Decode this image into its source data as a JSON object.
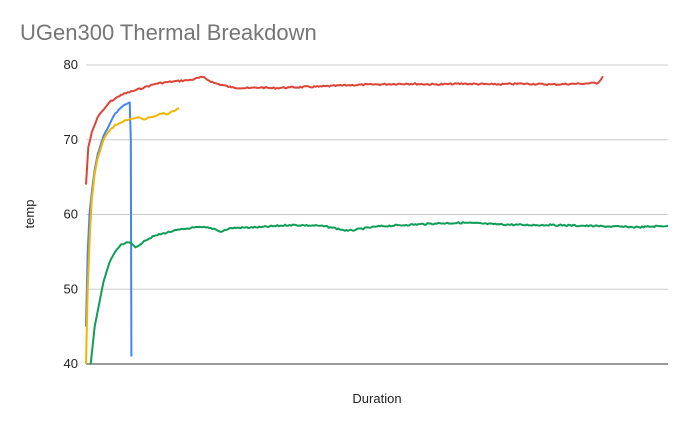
{
  "chart_data": {
    "type": "line",
    "title": "UGen300 Thermal Breakdown",
    "xlabel": "Duration",
    "ylabel": "temp",
    "ylim": [
      40,
      80
    ],
    "yticks": [
      40,
      50,
      60,
      70,
      80
    ],
    "xlim": [
      0,
      100
    ],
    "grid": true,
    "legend": "none",
    "series": [
      {
        "color": "#db4437",
        "x": [
          0,
          0.4,
          1,
          2,
          3,
          4,
          6,
          8,
          10,
          12,
          15,
          18,
          20,
          22,
          25,
          28,
          30,
          32,
          35,
          40,
          45,
          50,
          55,
          60,
          65,
          70,
          75,
          80,
          85,
          88,
          88.8
        ],
        "y": [
          64,
          69,
          71,
          73,
          74,
          75,
          76,
          76.5,
          77,
          77.5,
          77.8,
          78,
          78.4,
          77.6,
          77,
          76.9,
          77,
          76.9,
          77,
          77.1,
          77.3,
          77.4,
          77.5,
          77.4,
          77.5,
          77.4,
          77.5,
          77.4,
          77.5,
          77.6,
          78.5
        ]
      },
      {
        "color": "#4285f4",
        "x": [
          0,
          0.3,
          0.6,
          1,
          1.5,
          2,
          3,
          4,
          5,
          6,
          7,
          7.5,
          7.7,
          7.8
        ],
        "y": [
          45,
          55,
          60,
          63,
          66,
          68,
          70.5,
          72,
          73.5,
          74.3,
          74.8,
          75,
          70,
          41
        ]
      },
      {
        "color": "#f4b400",
        "x": [
          0,
          0.3,
          0.7,
          1,
          1.5,
          2,
          3,
          4,
          5,
          6,
          7,
          8,
          9,
          10,
          11,
          12,
          13,
          14,
          15,
          16
        ],
        "y": [
          40,
          50,
          58,
          62,
          65.5,
          67.5,
          70,
          71.2,
          72,
          72.3,
          72.6,
          72.8,
          73,
          72.7,
          73,
          73.2,
          73.5,
          73.4,
          73.8,
          74.2
        ]
      },
      {
        "color": "#0f9d58",
        "x": [
          0.8,
          1.5,
          2,
          3,
          4,
          5,
          6,
          7,
          8,
          8.5,
          9,
          10,
          12,
          15,
          18,
          20,
          22,
          23,
          25,
          30,
          35,
          40,
          42,
          45,
          50,
          55,
          60,
          65,
          70,
          75,
          80,
          85,
          90,
          95,
          100
        ],
        "y": [
          40,
          45,
          47,
          51,
          53.5,
          55,
          56,
          56.3,
          56,
          55.6,
          55.8,
          56.5,
          57.2,
          57.8,
          58.2,
          58.3,
          58.1,
          57.7,
          58.2,
          58.3,
          58.6,
          58.5,
          58.3,
          57.8,
          58.4,
          58.6,
          58.8,
          58.9,
          58.7,
          58.6,
          58.6,
          58.5,
          58.4,
          58.3,
          58.5
        ]
      }
    ]
  }
}
